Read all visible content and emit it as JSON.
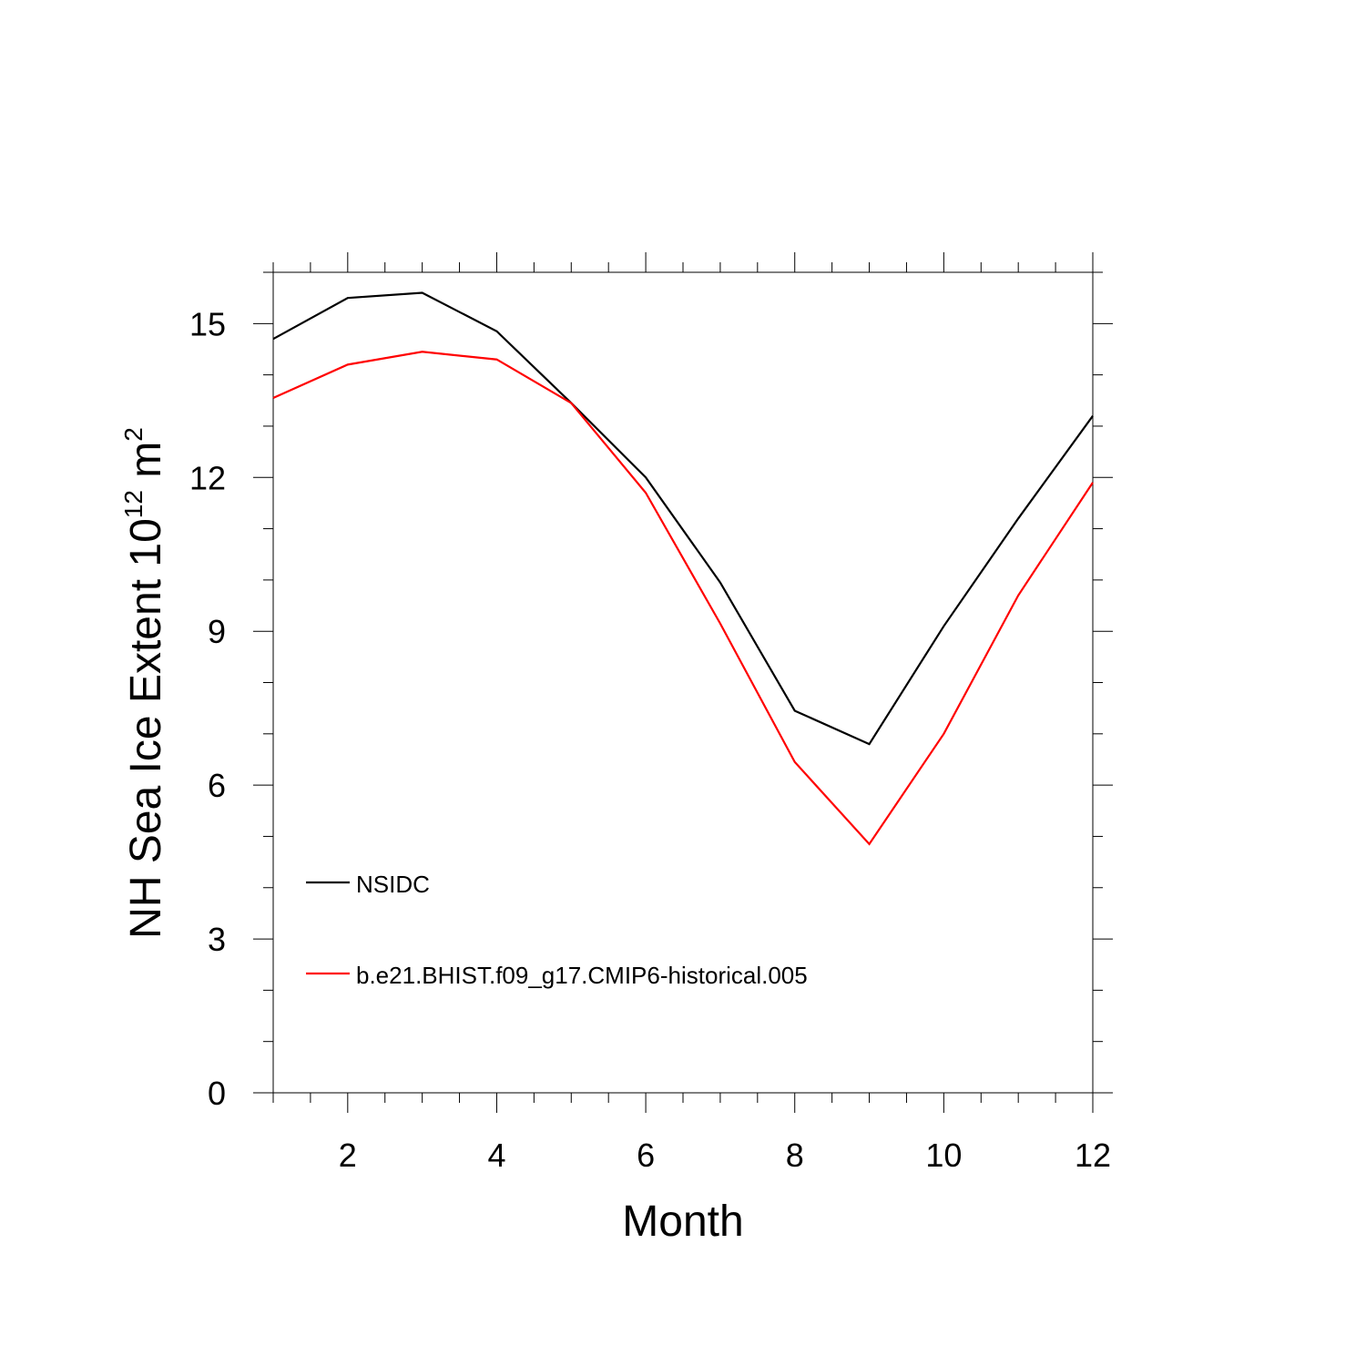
{
  "chart_data": {
    "type": "line",
    "xlabel": "Month",
    "ylabel": {
      "text": "NH Sea Ice Extent 10",
      "exponent": "12",
      "unit": " m",
      "unit_exponent": "2"
    },
    "xlim": [
      1,
      12
    ],
    "ylim": [
      0,
      16
    ],
    "x_ticks": [
      2,
      4,
      6,
      8,
      10,
      12
    ],
    "y_ticks": [
      0,
      3,
      6,
      9,
      12,
      15
    ],
    "x": [
      1,
      2,
      3,
      4,
      5,
      6,
      7,
      8,
      9,
      10,
      11,
      12
    ],
    "series": [
      {
        "name": "NSIDC",
        "color": "#000000",
        "values": [
          14.7,
          15.5,
          15.6,
          14.85,
          13.45,
          12.0,
          9.95,
          7.45,
          6.8,
          9.1,
          11.2,
          13.2
        ]
      },
      {
        "name": "b.e21.BHIST.f09_g17.CMIP6-historical.005",
        "color": "#ff0000",
        "values": [
          13.55,
          14.2,
          14.45,
          14.3,
          13.45,
          11.7,
          9.15,
          6.45,
          4.85,
          7.0,
          9.7,
          11.9
        ]
      }
    ],
    "grid": false,
    "legend_position": "bottom-left inside"
  }
}
